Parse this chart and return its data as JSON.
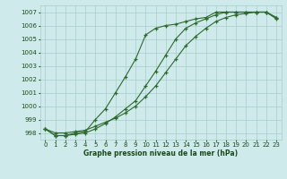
{
  "bg_color": "#ceeaea",
  "grid_color": "#aacccc",
  "line_color": "#2d6a2d",
  "marker_color": "#2d6a2d",
  "xlabel": "Graphe pression niveau de la mer (hPa)",
  "xlabel_color": "#1a4a1a",
  "ylabel_color": "#1a4a1a",
  "xlim": [
    -0.5,
    23.5
  ],
  "ylim": [
    997.5,
    1007.5
  ],
  "yticks": [
    998,
    999,
    1000,
    1001,
    1002,
    1003,
    1004,
    1005,
    1006,
    1007
  ],
  "xticks": [
    0,
    1,
    2,
    3,
    4,
    5,
    6,
    7,
    8,
    9,
    10,
    11,
    12,
    13,
    14,
    15,
    16,
    17,
    18,
    19,
    20,
    21,
    22,
    23
  ],
  "series1_x": [
    0,
    1,
    2,
    3,
    4,
    5,
    6,
    7,
    8,
    9,
    10,
    11,
    12,
    13,
    14,
    15,
    16,
    17,
    18,
    19,
    20,
    21,
    22,
    23
  ],
  "series1_y": [
    998.3,
    997.8,
    997.8,
    998.0,
    998.1,
    999.0,
    999.8,
    1001.0,
    1002.2,
    1003.5,
    1005.3,
    1005.8,
    1006.0,
    1006.1,
    1006.3,
    1006.5,
    1006.6,
    1007.0,
    1007.0,
    1007.0,
    1007.0,
    1007.0,
    1007.0,
    1006.6
  ],
  "series2_x": [
    0,
    1,
    2,
    3,
    4,
    5,
    6,
    7,
    8,
    9,
    10,
    11,
    12,
    13,
    14,
    15,
    16,
    17,
    18,
    19,
    20,
    21,
    22,
    23
  ],
  "series2_y": [
    998.3,
    997.8,
    997.8,
    997.9,
    998.0,
    998.3,
    998.7,
    999.2,
    999.8,
    1000.4,
    1001.5,
    1002.6,
    1003.8,
    1005.0,
    1005.8,
    1006.2,
    1006.5,
    1006.8,
    1007.0,
    1007.0,
    1007.0,
    1007.0,
    1007.0,
    1006.5
  ],
  "series3_x": [
    0,
    1,
    2,
    3,
    4,
    5,
    6,
    7,
    8,
    9,
    10,
    11,
    12,
    13,
    14,
    15,
    16,
    17,
    18,
    19,
    20,
    21,
    22,
    23
  ],
  "series3_y": [
    998.3,
    998.0,
    998.0,
    998.1,
    998.2,
    998.5,
    998.8,
    999.1,
    999.5,
    1000.0,
    1000.7,
    1001.5,
    1002.5,
    1003.5,
    1004.5,
    1005.2,
    1005.8,
    1006.3,
    1006.6,
    1006.8,
    1006.9,
    1007.0,
    1007.0,
    1006.6
  ]
}
